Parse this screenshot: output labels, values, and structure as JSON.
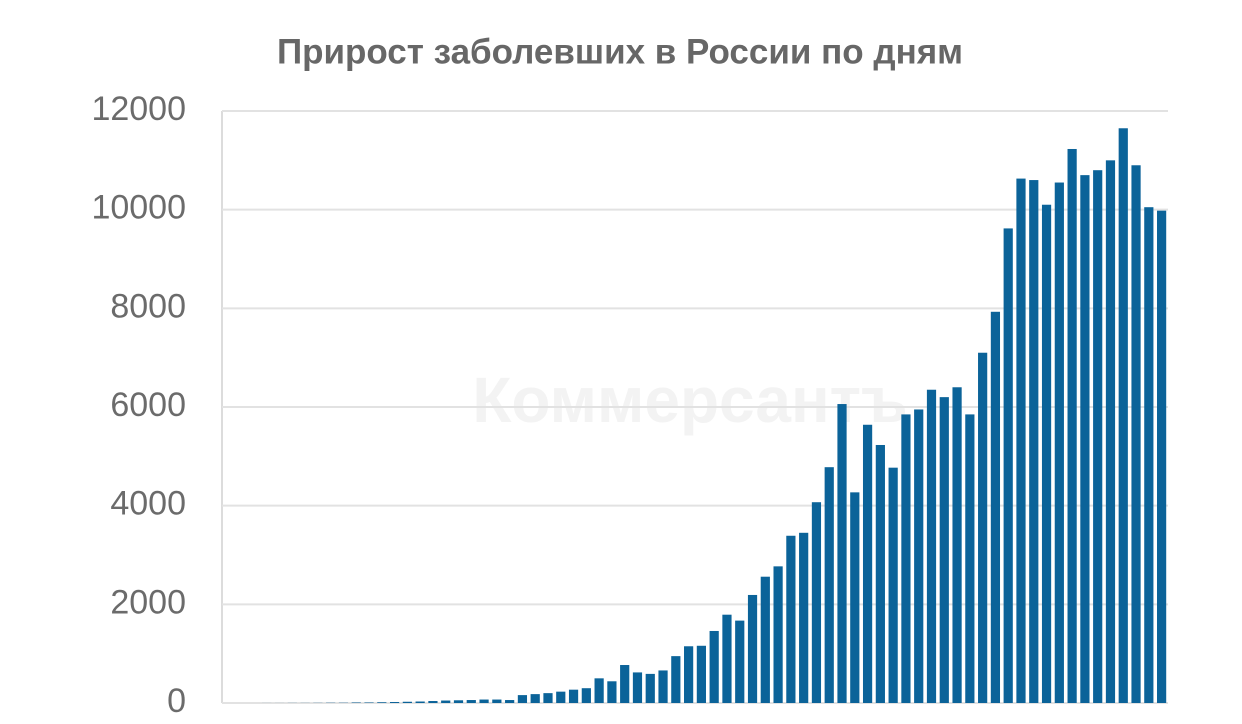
{
  "chart_data": {
    "type": "bar",
    "title": "Прирост заболевших в России по дням",
    "watermark": "Коммерсантъ",
    "values": [
      0,
      0,
      0,
      1,
      1,
      2,
      2,
      3,
      5,
      5,
      10,
      10,
      15,
      20,
      25,
      30,
      40,
      50,
      55,
      60,
      70,
      70,
      60,
      160,
      180,
      200,
      230,
      270,
      300,
      500,
      440,
      770,
      620,
      590,
      660,
      950,
      1150,
      1160,
      1460,
      1790,
      1670,
      2190,
      2560,
      2770,
      3390,
      3450,
      4070,
      4780,
      6060,
      4270,
      5640,
      5230,
      4770,
      5850,
      5950,
      6350,
      6200,
      6400,
      5850,
      7100,
      7930,
      9620,
      10630,
      10600,
      10100,
      10550,
      11230,
      10700,
      10800,
      11000,
      11650,
      10900,
      10050,
      9980
    ],
    "color": "#0b6399",
    "ylim": [
      0,
      12000
    ],
    "yticks": [
      0,
      2000,
      4000,
      6000,
      8000,
      10000,
      12000
    ],
    "grid": true
  }
}
